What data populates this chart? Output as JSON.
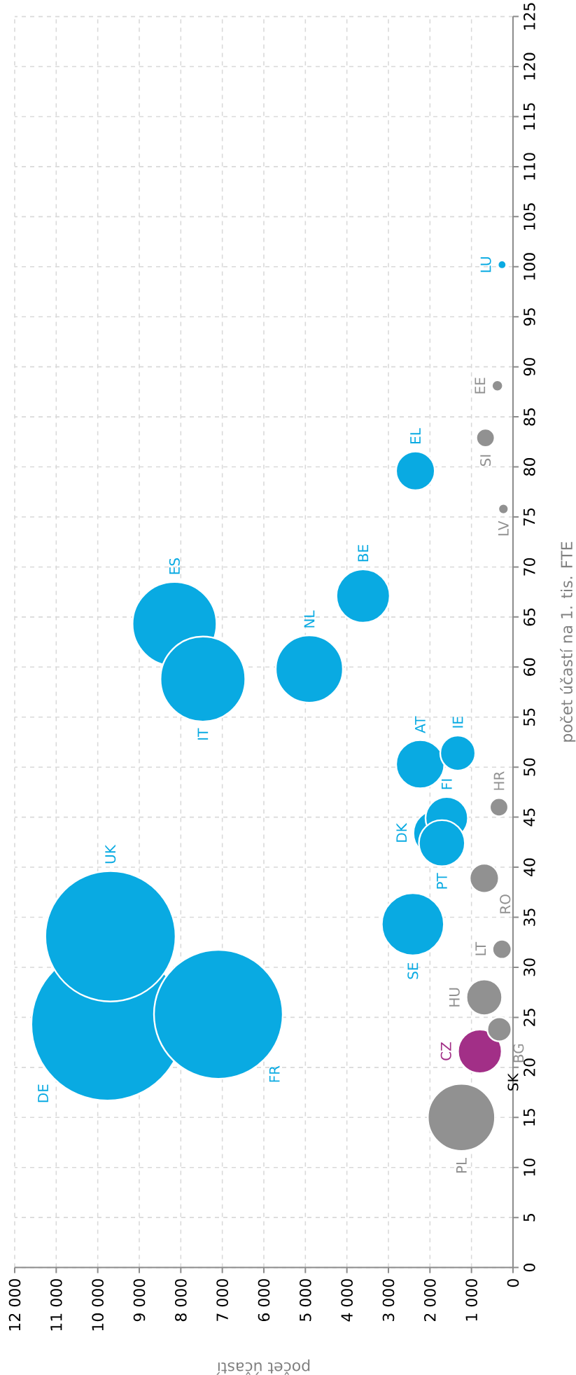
{
  "chart_data": {
    "type": "bubble",
    "xlabel": "počet účastí",
    "ylabel": "počet účastí na 1. tis. FTE",
    "ylim": [
      0,
      125
    ],
    "yticks": [
      0,
      5,
      10,
      15,
      20,
      25,
      30,
      35,
      40,
      45,
      50,
      55,
      60,
      65,
      70,
      75,
      80,
      85,
      90,
      95,
      100,
      105,
      110,
      115,
      120,
      125
    ],
    "xlim": [
      12000,
      0
    ],
    "xticks": [
      {
        "value": 12000,
        "label": "12 000"
      },
      {
        "value": 11000,
        "label": "11 000"
      },
      {
        "value": 10000,
        "label": "10 000"
      },
      {
        "value": 9000,
        "label": "9 000"
      },
      {
        "value": 8000,
        "label": "8 000"
      },
      {
        "value": 7000,
        "label": "7 000"
      },
      {
        "value": 6000,
        "label": "6 000"
      },
      {
        "value": 5000,
        "label": "5 000"
      },
      {
        "value": 4000,
        "label": "4 000"
      },
      {
        "value": 3000,
        "label": "3 000"
      },
      {
        "value": 2000,
        "label": "2 000"
      },
      {
        "value": 1000,
        "label": "1 000"
      },
      0
    ],
    "grid": true,
    "series": [
      {
        "name": "DE",
        "color": "#09aae2",
        "x": [
          9765
        ],
        "values": [
          24.3
        ],
        "sizes": [
          1.0
        ]
      },
      {
        "name": "UK",
        "color": "#09aae2",
        "x": [
          9694
        ],
        "values": [
          33.1
        ],
        "sizes": [
          0.735
        ]
      },
      {
        "name": "FR",
        "color": "#09aae2",
        "x": [
          7095
        ],
        "values": [
          25.3
        ],
        "sizes": [
          0.718
        ]
      },
      {
        "name": "ES",
        "color": "#09aae2",
        "x": [
          8151
        ],
        "values": [
          64.3
        ],
        "sizes": [
          0.31
        ]
      },
      {
        "name": "IT",
        "color": "#09aae2",
        "x": [
          7468
        ],
        "values": [
          58.8
        ],
        "sizes": [
          0.316
        ]
      },
      {
        "name": "NL",
        "color": "#09aae2",
        "x": [
          4905
        ],
        "values": [
          59.8
        ],
        "sizes": [
          0.2
        ]
      },
      {
        "name": "BE",
        "color": "#09aae2",
        "x": [
          3610
        ],
        "values": [
          67.1
        ],
        "sizes": [
          0.128
        ]
      },
      {
        "name": "EL",
        "color": "#09aae2",
        "x": [
          2350
        ],
        "values": [
          79.6
        ],
        "sizes": [
          0.069
        ]
      },
      {
        "name": "SE",
        "color": "#09aae2",
        "x": [
          2412
        ],
        "values": [
          34.3
        ],
        "sizes": [
          0.172
        ]
      },
      {
        "name": "AT",
        "color": "#09aae2",
        "x": [
          2235
        ],
        "values": [
          50.3
        ],
        "sizes": [
          0.105
        ]
      },
      {
        "name": "IE",
        "color": "#09aae2",
        "x": [
          1330
        ],
        "values": [
          51.4
        ],
        "sizes": [
          0.057
        ]
      },
      {
        "name": "DK",
        "color": "#09aae2",
        "x": [
          1845
        ],
        "values": [
          43.4
        ],
        "sizes": [
          0.096
        ]
      },
      {
        "name": "FI",
        "color": "#09aae2",
        "x": [
          1596
        ],
        "values": [
          44.9
        ],
        "sizes": [
          0.082
        ]
      },
      {
        "name": "PT",
        "color": "#09aae2",
        "x": [
          1712
        ],
        "values": [
          42.4
        ],
        "sizes": [
          0.096
        ]
      },
      {
        "name": "PL",
        "color": "#919191",
        "x": [
          1242
        ],
        "values": [
          15.0
        ],
        "sizes": [
          0.2
        ]
      },
      {
        "name": "CZ",
        "color": "#a22f87",
        "x": [
          798
        ],
        "values": [
          21.6
        ],
        "sizes": [
          0.087
        ]
      },
      {
        "name": "HU",
        "color": "#919191",
        "x": [
          692
        ],
        "values": [
          27.0
        ],
        "sizes": [
          0.059
        ]
      },
      {
        "name": "RO",
        "color": "#919191",
        "x": [
          692
        ],
        "values": [
          38.9
        ],
        "sizes": [
          0.04
        ]
      },
      {
        "name": "BG",
        "color": "#919191",
        "x": [
          328
        ],
        "values": [
          23.8
        ],
        "sizes": [
          0.028
        ]
      },
      {
        "name": "HR",
        "color": "#919191",
        "x": [
          337
        ],
        "values": [
          46.0
        ],
        "sizes": [
          0.017
        ]
      },
      {
        "name": "LT",
        "color": "#919191",
        "x": [
          266
        ],
        "values": [
          31.8
        ],
        "sizes": [
          0.018
        ]
      },
      {
        "name": "SI",
        "color": "#919191",
        "x": [
          663
        ],
        "values": [
          82.9
        ],
        "sizes": [
          0.017
        ]
      },
      {
        "name": "LV",
        "color": "#919191",
        "x": [
          231
        ],
        "values": [
          75.8
        ],
        "sizes": [
          0.006
        ]
      },
      {
        "name": "EE",
        "color": "#919191",
        "x": [
          376
        ],
        "values": [
          88.1
        ],
        "sizes": [
          0.007
        ]
      },
      {
        "name": "LU",
        "color": "#09aae2",
        "x": [
          264
        ],
        "values": [
          100.2
        ],
        "sizes": [
          0.0044
        ]
      }
    ],
    "annotations": [
      "SK"
    ]
  }
}
